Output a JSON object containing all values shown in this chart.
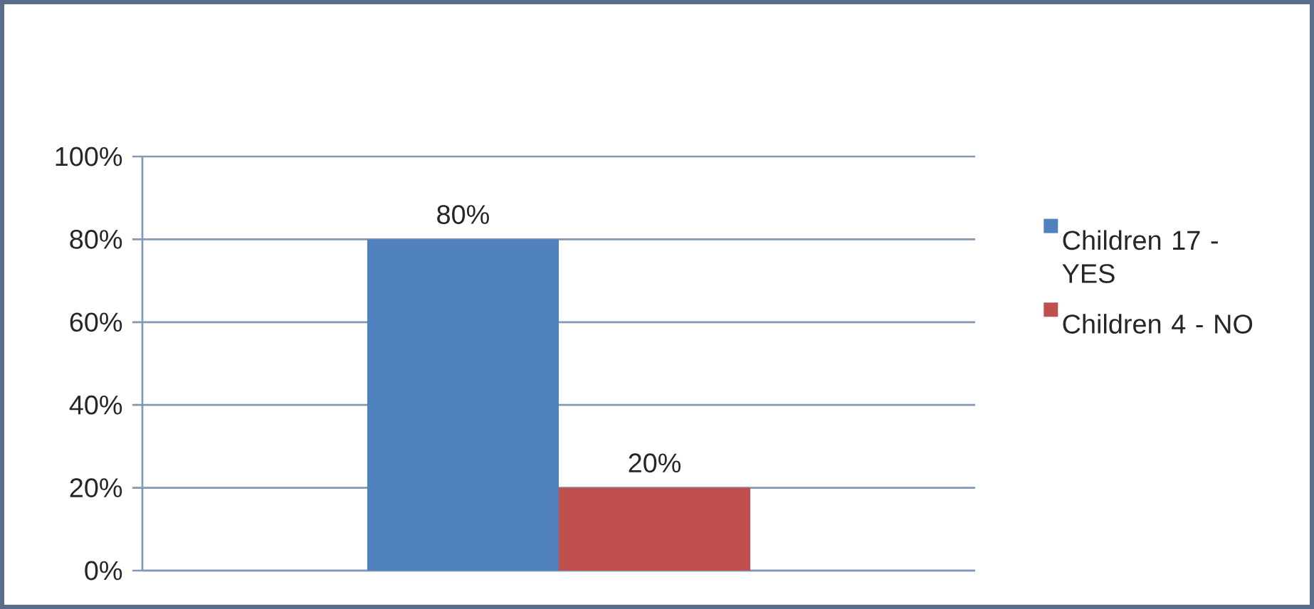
{
  "chart_data": {
    "type": "bar",
    "categories": [
      null
    ],
    "series": [
      {
        "name": "Children 17 - YES",
        "color": "#4f81bd",
        "values": [
          80
        ],
        "value_labels": [
          "80%"
        ]
      },
      {
        "name": "Children 4 - NO",
        "color": "#c0504d",
        "values": [
          20
        ],
        "value_labels": [
          "20%"
        ]
      }
    ],
    "ylim": [
      0,
      100
    ],
    "yticks": [
      {
        "value": 0,
        "label": "0%"
      },
      {
        "value": 20,
        "label": "20%"
      },
      {
        "value": 40,
        "label": "40%"
      },
      {
        "value": 60,
        "label": "60%"
      },
      {
        "value": 80,
        "label": "80%"
      },
      {
        "value": 100,
        "label": "100%"
      }
    ],
    "grid": "y",
    "legend": "right"
  }
}
